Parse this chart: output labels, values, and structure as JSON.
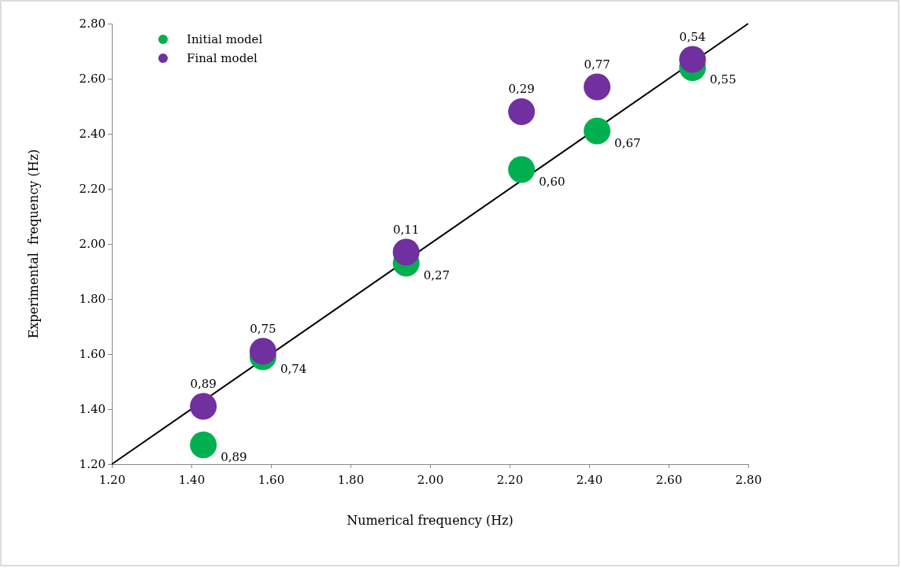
{
  "chart_data": {
    "type": "scatter",
    "xlabel": "Numerical frequency (Hz)",
    "ylabel": "Experimental  frequency (Hz)",
    "xlim": [
      1.2,
      2.8
    ],
    "ylim": [
      1.2,
      2.8
    ],
    "xticks": [
      {
        "value": 1.2,
        "label": "1.20"
      },
      {
        "value": 1.4,
        "label": "1.40"
      },
      {
        "value": 1.6,
        "label": "1.60"
      },
      {
        "value": 1.8,
        "label": "1.80"
      },
      {
        "value": 2.0,
        "label": "2.00"
      },
      {
        "value": 2.2,
        "label": "2.20"
      },
      {
        "value": 2.4,
        "label": "2.40"
      },
      {
        "value": 2.6,
        "label": "2.60"
      },
      {
        "value": 2.8,
        "label": "2.80"
      }
    ],
    "yticks": [
      {
        "value": 1.2,
        "label": "1.20"
      },
      {
        "value": 1.4,
        "label": "1.40"
      },
      {
        "value": 1.6,
        "label": "1.60"
      },
      {
        "value": 1.8,
        "label": "1.80"
      },
      {
        "value": 2.0,
        "label": "2.00"
      },
      {
        "value": 2.2,
        "label": "2.20"
      },
      {
        "value": 2.4,
        "label": "2.40"
      },
      {
        "value": 2.6,
        "label": "2.60"
      },
      {
        "value": 2.8,
        "label": "2.80"
      }
    ],
    "legend": "top left",
    "marker": "circle",
    "series": [
      {
        "type": "line",
        "color": "#000000",
        "x": [
          1.2,
          2.8
        ],
        "values": [
          1.2,
          2.8
        ],
        "line_style": "solid",
        "marker": "none"
      },
      {
        "name": "Initial model",
        "color": "#00b050",
        "x": [
          1.43,
          1.58,
          1.94,
          2.23,
          2.42,
          2.66
        ],
        "values": [
          1.27,
          1.59,
          1.93,
          2.27,
          2.41,
          2.64
        ]
      },
      {
        "name": "Final model",
        "color": "#7030a0",
        "x": [
          1.43,
          1.58,
          1.94,
          2.23,
          2.42,
          2.66
        ],
        "values": [
          1.41,
          1.61,
          1.97,
          2.48,
          2.57,
          2.67
        ]
      }
    ],
    "annotations": [
      {
        "text": "0,89",
        "x": 1.43,
        "y": 1.27
      },
      {
        "text": "0,74",
        "x": 1.58,
        "y": 1.59
      },
      {
        "text": "0,27",
        "x": 1.94,
        "y": 1.93
      },
      {
        "text": "0,60",
        "x": 2.23,
        "y": 2.27
      },
      {
        "text": "0,67",
        "x": 2.42,
        "y": 2.41
      },
      {
        "text": "0,55",
        "x": 2.66,
        "y": 2.64
      },
      {
        "text": "0,89",
        "x": 1.43,
        "y": 1.41
      },
      {
        "text": "0,75",
        "x": 1.58,
        "y": 1.61
      },
      {
        "text": "0,11",
        "x": 1.94,
        "y": 1.97
      },
      {
        "text": "0,29",
        "x": 2.23,
        "y": 2.48
      },
      {
        "text": "0,77",
        "x": 2.42,
        "y": 2.57
      },
      {
        "text": "0,54",
        "x": 2.66,
        "y": 2.67
      }
    ]
  }
}
